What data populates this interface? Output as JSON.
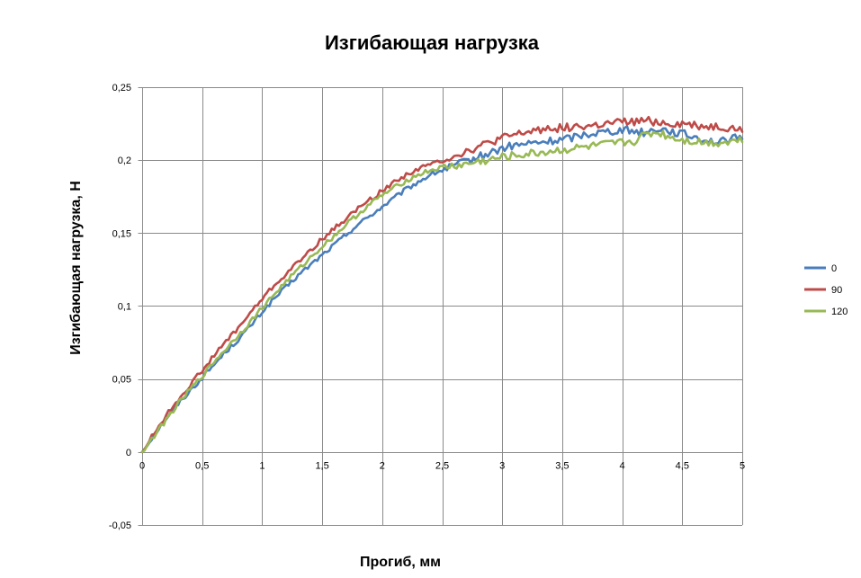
{
  "chart_data": {
    "type": "line",
    "title": "Изгибающая нагрузка",
    "xlabel": "Прогиб, мм",
    "ylabel": "Изгибающая нагрузка, Н",
    "xlim": [
      0,
      5
    ],
    "ylim": [
      -0.05,
      0.25
    ],
    "x_ticks": [
      0,
      0.5,
      1,
      1.5,
      2,
      2.5,
      3,
      3.5,
      4,
      4.5,
      5
    ],
    "x_tick_labels": [
      "0",
      "0,5",
      "1",
      "1,5",
      "2",
      "2,5",
      "3",
      "3,5",
      "4",
      "4,5",
      "5"
    ],
    "y_ticks": [
      -0.05,
      0,
      0.05,
      0.1,
      0.15,
      0.2,
      0.25
    ],
    "y_tick_labels": [
      "-0,05",
      "0",
      "0,05",
      "0,1",
      "0,15",
      "0,2",
      "0,25"
    ],
    "grid": true,
    "legend_position": "right",
    "series": [
      {
        "name": "0",
        "color": "#4a7ebb",
        "x": [
          0,
          0.1,
          0.2,
          0.3,
          0.4,
          0.5,
          0.6,
          0.7,
          0.8,
          0.9,
          1.0,
          1.1,
          1.2,
          1.3,
          1.4,
          1.5,
          1.6,
          1.7,
          1.8,
          1.9,
          2.0,
          2.1,
          2.2,
          2.3,
          2.4,
          2.5,
          2.6,
          2.7,
          2.8,
          2.9,
          3.0,
          3.1,
          3.2,
          3.3,
          3.4,
          3.5,
          3.6,
          3.7,
          3.8,
          3.9,
          4.0,
          4.1,
          4.2,
          4.3,
          4.4,
          4.5,
          4.6,
          4.7,
          4.8,
          4.9,
          5.0
        ],
        "values": [
          0.0,
          0.012,
          0.023,
          0.033,
          0.042,
          0.051,
          0.06,
          0.069,
          0.077,
          0.086,
          0.096,
          0.105,
          0.113,
          0.121,
          0.128,
          0.135,
          0.142,
          0.149,
          0.156,
          0.162,
          0.168,
          0.174,
          0.18,
          0.185,
          0.19,
          0.193,
          0.196,
          0.199,
          0.202,
          0.205,
          0.208,
          0.21,
          0.211,
          0.212,
          0.213,
          0.214,
          0.216,
          0.218,
          0.219,
          0.22,
          0.221,
          0.22,
          0.219,
          0.222,
          0.22,
          0.218,
          0.216,
          0.214,
          0.212,
          0.214,
          0.216
        ]
      },
      {
        "name": "90",
        "color": "#be4b48",
        "x": [
          0,
          0.1,
          0.2,
          0.3,
          0.4,
          0.5,
          0.6,
          0.7,
          0.8,
          0.9,
          1.0,
          1.1,
          1.2,
          1.3,
          1.4,
          1.5,
          1.6,
          1.7,
          1.8,
          1.9,
          2.0,
          2.1,
          2.2,
          2.3,
          2.4,
          2.5,
          2.6,
          2.7,
          2.8,
          2.9,
          3.0,
          3.1,
          3.2,
          3.3,
          3.4,
          3.5,
          3.6,
          3.7,
          3.8,
          3.9,
          4.0,
          4.1,
          4.2,
          4.3,
          4.4,
          4.5,
          4.6,
          4.7,
          4.8,
          4.9,
          5.0
        ],
        "values": [
          0.0,
          0.013,
          0.025,
          0.036,
          0.046,
          0.056,
          0.066,
          0.076,
          0.085,
          0.095,
          0.105,
          0.114,
          0.122,
          0.13,
          0.138,
          0.146,
          0.153,
          0.16,
          0.167,
          0.173,
          0.179,
          0.185,
          0.19,
          0.194,
          0.197,
          0.2,
          0.203,
          0.206,
          0.209,
          0.212,
          0.215,
          0.217,
          0.219,
          0.221,
          0.222,
          0.222,
          0.223,
          0.223,
          0.224,
          0.225,
          0.226,
          0.226,
          0.227,
          0.226,
          0.225,
          0.225,
          0.224,
          0.223,
          0.223,
          0.222,
          0.221
        ]
      },
      {
        "name": "120",
        "color": "#98b954",
        "x": [
          0,
          0.1,
          0.2,
          0.3,
          0.4,
          0.5,
          0.6,
          0.7,
          0.8,
          0.9,
          1.0,
          1.1,
          1.2,
          1.3,
          1.4,
          1.5,
          1.6,
          1.7,
          1.8,
          1.9,
          2.0,
          2.1,
          2.2,
          2.3,
          2.4,
          2.5,
          2.6,
          2.7,
          2.8,
          2.9,
          3.0,
          3.1,
          3.2,
          3.3,
          3.4,
          3.5,
          3.6,
          3.7,
          3.8,
          3.9,
          4.0,
          4.1,
          4.2,
          4.3,
          4.4,
          4.5,
          4.6,
          4.7,
          4.8,
          4.9,
          5.0
        ],
        "values": [
          0.0,
          0.011,
          0.022,
          0.033,
          0.043,
          0.052,
          0.062,
          0.071,
          0.08,
          0.089,
          0.099,
          0.108,
          0.117,
          0.125,
          0.133,
          0.141,
          0.148,
          0.156,
          0.163,
          0.17,
          0.176,
          0.181,
          0.186,
          0.19,
          0.193,
          0.195,
          0.196,
          0.197,
          0.199,
          0.2,
          0.202,
          0.203,
          0.204,
          0.205,
          0.206,
          0.207,
          0.208,
          0.209,
          0.21,
          0.211,
          0.212,
          0.213,
          0.218,
          0.219,
          0.216,
          0.214,
          0.213,
          0.212,
          0.212,
          0.213,
          0.214
        ]
      }
    ]
  }
}
